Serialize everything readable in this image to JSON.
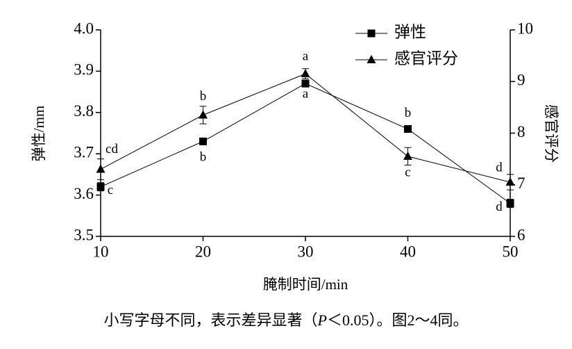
{
  "chart_data": {
    "type": "line",
    "xlabel": "腌制时间/min",
    "ylabel": "弹性/mm",
    "y2label": "感官评分",
    "x": [
      10,
      20,
      30,
      40,
      50
    ],
    "xlim": [
      10,
      50
    ],
    "xticks": [
      10,
      20,
      30,
      40,
      50
    ],
    "ylim": [
      3.5,
      4.0
    ],
    "yticks": [
      3.5,
      3.6,
      3.7,
      3.8,
      3.9,
      {
        "value": 4.0,
        "label": "4.0"
      }
    ],
    "y2lim": [
      6,
      10
    ],
    "y2ticks": [
      6,
      7,
      8,
      9,
      10
    ],
    "legend": "upper right",
    "series": [
      {
        "name": "弹性",
        "color": "#000000",
        "marker": "square",
        "values": [
          3.62,
          3.73,
          3.87,
          3.76,
          3.58
        ],
        "errors": [
          0.01,
          0.008,
          0.008,
          0.008,
          0.01
        ],
        "letters": [
          "c",
          "b",
          "a",
          "b",
          "d"
        ]
      },
      {
        "name": "感官评分",
        "color": "#000000",
        "marker": "triangle",
        "axis": "y2",
        "values": [
          7.3,
          8.35,
          9.15,
          7.55,
          7.05
        ],
        "errors": [
          0.2,
          0.17,
          0.1,
          0.17,
          0.15
        ],
        "letters": [
          "cd",
          "b",
          "a",
          "c",
          "d"
        ]
      }
    ]
  },
  "note": {
    "before": "小写字母不同，表示差异显著（",
    "italic": "P",
    "after": "＜0.05）。图2～4同。"
  }
}
